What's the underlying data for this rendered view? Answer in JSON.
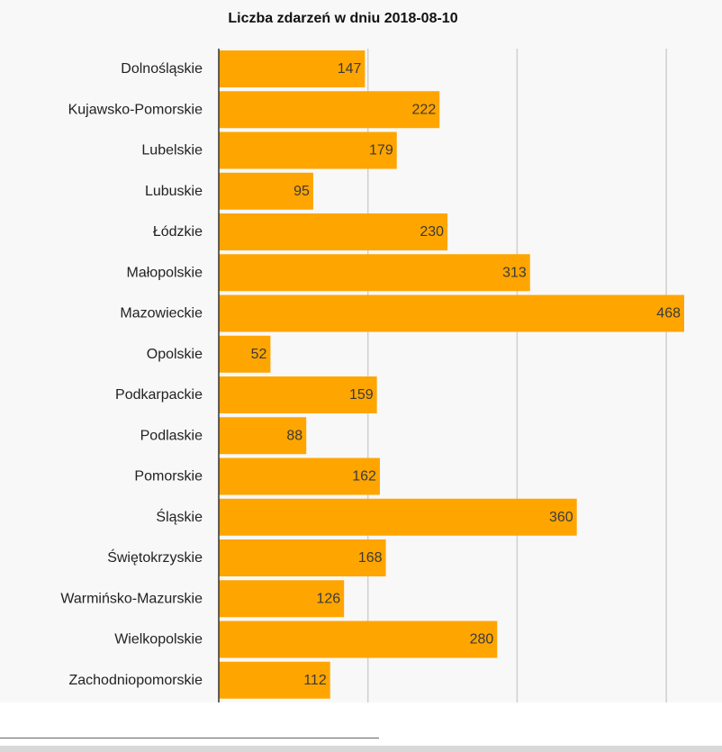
{
  "chart_data": {
    "type": "bar",
    "orientation": "horizontal",
    "title": "Liczba zdarzeń w dniu 2018-08-10",
    "categories": [
      "Dolnośląskie",
      "Kujawsko-Pomorskie",
      "Lubelskie",
      "Lubuskie",
      "Łódzkie",
      "Małopolskie",
      "Mazowieckie",
      "Opolskie",
      "Podkarpackie",
      "Podlaskie",
      "Pomorskie",
      "Śląskie",
      "Świętokrzyskie",
      "Warmińsko-Mazurskie",
      "Wielkopolskie",
      "Zachodniopomorskie"
    ],
    "values": [
      147,
      222,
      179,
      95,
      230,
      313,
      468,
      52,
      159,
      88,
      162,
      360,
      168,
      126,
      280,
      112
    ],
    "xlim": [
      0,
      470
    ],
    "gridlines": [
      150,
      300,
      450
    ],
    "grid": true,
    "bar_color": "#FFA500"
  }
}
